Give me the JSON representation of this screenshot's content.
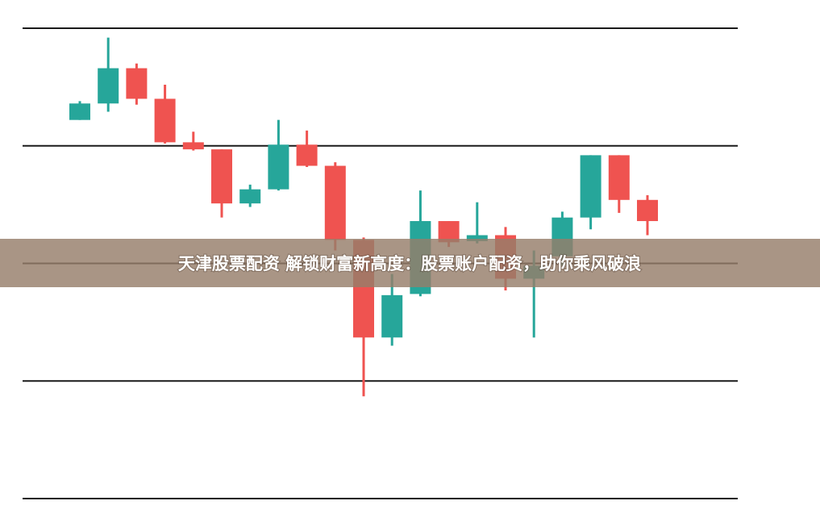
{
  "chart_data": {
    "type": "candlestick",
    "categories": [
      null,
      null,
      null,
      null,
      null,
      null,
      null,
      null,
      null,
      null,
      null,
      null,
      null,
      null,
      null,
      null,
      null,
      null,
      null,
      null,
      null
    ],
    "open": [
      3.22,
      3.36,
      3.66,
      3.4,
      3.03,
      2.97,
      2.51,
      2.63,
      3.01,
      2.83,
      2.2,
      1.37,
      1.74,
      2.36,
      2.19,
      2.24,
      1.87,
      2.06,
      2.39,
      2.92,
      2.54
    ],
    "high": [
      3.38,
      3.92,
      3.7,
      3.52,
      3.12,
      2.97,
      2.67,
      3.22,
      3.13,
      2.86,
      2.22,
      1.91,
      2.62,
      2.36,
      2.52,
      2.31,
      2.11,
      2.44,
      2.92,
      2.92,
      2.58
    ],
    "low": [
      3.22,
      3.29,
      3.35,
      3.02,
      2.96,
      2.39,
      2.48,
      2.62,
      2.82,
      2.11,
      0.87,
      1.3,
      1.72,
      2.14,
      2.17,
      1.77,
      1.37,
      1.98,
      2.29,
      2.43,
      2.24
    ],
    "close": [
      3.36,
      3.66,
      3.4,
      3.03,
      2.97,
      2.51,
      2.63,
      3.01,
      2.83,
      2.2,
      1.37,
      1.73,
      2.36,
      2.18,
      2.24,
      1.87,
      1.98,
      2.39,
      2.92,
      2.54,
      2.36
    ],
    "up_color": "#26a69a",
    "down_color": "#ef5350",
    "ylim": [
      0,
      4
    ],
    "yticks": [
      0,
      1,
      2,
      3,
      4
    ],
    "grid": true
  },
  "banner": {
    "text": "天津股票配资 解锁财富新高度：股票账户配资，助你乘风破浪"
  }
}
